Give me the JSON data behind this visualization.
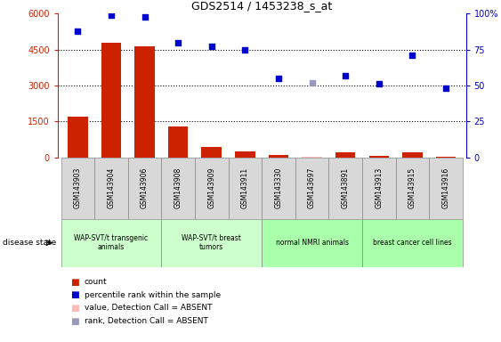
{
  "title": "GDS2514 / 1453238_s_at",
  "samples": [
    "GSM143903",
    "GSM143904",
    "GSM143906",
    "GSM143908",
    "GSM143909",
    "GSM143911",
    "GSM143330",
    "GSM143697",
    "GSM143891",
    "GSM143913",
    "GSM143915",
    "GSM143916"
  ],
  "count_values": [
    1700,
    4800,
    4650,
    1300,
    420,
    260,
    90,
    40,
    220,
    60,
    220,
    40
  ],
  "count_absent": [
    false,
    false,
    false,
    false,
    false,
    false,
    false,
    true,
    false,
    false,
    false,
    false
  ],
  "rank_values": [
    88,
    99,
    98,
    80,
    77,
    75,
    55,
    52,
    57,
    51,
    71,
    48
  ],
  "rank_absent": [
    false,
    false,
    false,
    false,
    false,
    false,
    false,
    true,
    false,
    false,
    false,
    false
  ],
  "ylim_left": [
    0,
    6000
  ],
  "ylim_right": [
    0,
    100
  ],
  "yticks_left": [
    0,
    1500,
    3000,
    4500,
    6000
  ],
  "ytick_labels_left": [
    "0",
    "1500",
    "3000",
    "4500",
    "6000"
  ],
  "yticks_right": [
    0,
    25,
    50,
    75,
    100
  ],
  "ytick_labels_right": [
    "0",
    "25",
    "50",
    "75",
    "100%"
  ],
  "bar_color": "#cc2200",
  "bar_absent_color": "#ffbbbb",
  "rank_color": "#0000cc",
  "rank_absent_color": "#9999bb",
  "tick_color_left": "#cc2200",
  "tick_color_right": "#0000cc",
  "group_info": [
    {
      "indices": [
        0,
        1,
        2
      ],
      "color": "#ccffcc",
      "label": "WAP-SVT/t transgenic\nanimals"
    },
    {
      "indices": [
        3,
        4,
        5
      ],
      "color": "#ccffcc",
      "label": "WAP-SVT/t breast\ntumors"
    },
    {
      "indices": [
        6,
        7,
        8
      ],
      "color": "#aaffaa",
      "label": "normal NMRI animals"
    },
    {
      "indices": [
        9,
        10,
        11
      ],
      "color": "#aaffaa",
      "label": "breast cancer cell lines"
    }
  ]
}
